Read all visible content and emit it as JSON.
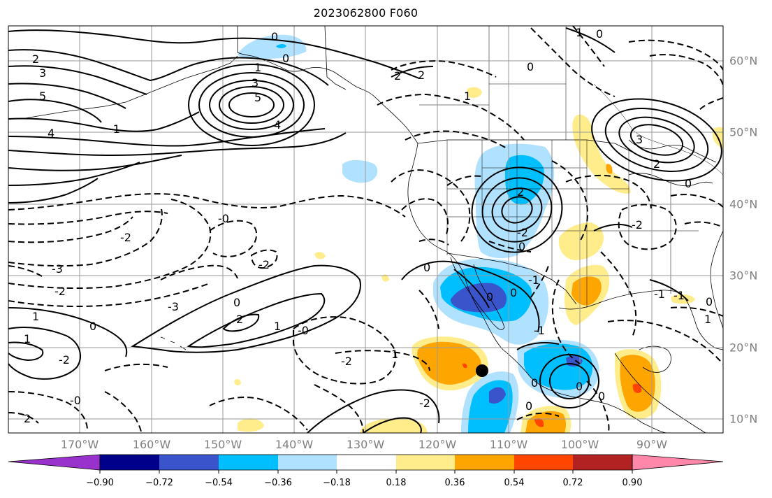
{
  "title": "2023062800 F060",
  "lat_labels": [
    "60°N",
    "50°N",
    "40°N",
    "30°N",
    "20°N",
    "10°N"
  ],
  "lon_labels": [
    "170°W",
    "160°W",
    "150°W",
    "140°W",
    "130°W",
    "120°W",
    "110°W",
    "100°W",
    "90°W"
  ],
  "colorbar": {
    "tick_labels": [
      "−0.90",
      "−0.72",
      "−0.54",
      "−0.36",
      "−0.18",
      "0.18",
      "0.36",
      "0.54",
      "0.72",
      "0.90"
    ],
    "colors": [
      "#9932cc",
      "#00008b",
      "#3a55cc",
      "#00bfff",
      "#b0e2ff",
      "#ffffff",
      "#ffec8b",
      "#ffa500",
      "#ff4500",
      "#b22222",
      "#ff88aa"
    ]
  },
  "contour_labels": [
    "0",
    "0",
    "1",
    "0",
    "2",
    "3",
    "5",
    "4",
    "2",
    "3",
    "5",
    "4",
    "1",
    "2",
    "2",
    "0",
    "1",
    "-1",
    "3",
    "2",
    "0",
    "-2",
    "-2",
    "0",
    "-3",
    "-2",
    "1",
    "0",
    "-2",
    "-2",
    "-3",
    "-2",
    "-0",
    "-0",
    "0",
    "2",
    "1",
    "-0",
    "1",
    "-2",
    "1",
    "2",
    "-2",
    "0",
    "-1",
    "-1",
    "-1",
    "0",
    "0",
    "1",
    "0",
    "0",
    "0",
    "0",
    "0",
    "-1",
    "0"
  ]
}
